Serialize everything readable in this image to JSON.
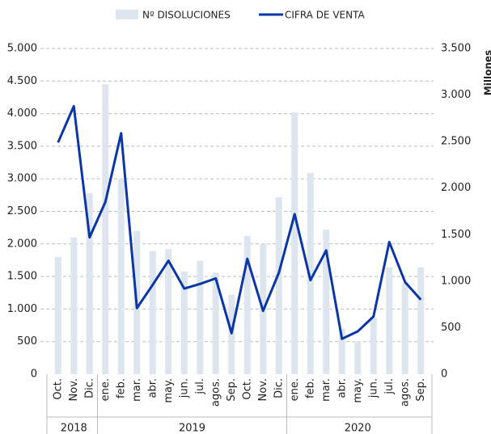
{
  "chart_data": {
    "type": "bar-line",
    "categories": [
      "Oct.",
      "Nov.",
      "Dic.",
      "ene.",
      "feb.",
      "mar.",
      "abr.",
      "may.",
      "jun.",
      "jul.",
      "agos.",
      "Sep.",
      "Oct.",
      "Nov.",
      "Dic.",
      "ene.",
      "feb.",
      "mar.",
      "abr.",
      "may.",
      "jun.",
      "jul.",
      "agos.",
      "Sep."
    ],
    "x_groups": [
      {
        "label": "2018",
        "span": 3
      },
      {
        "label": "2019",
        "span": 12
      },
      {
        "label": "2020",
        "span": 9
      }
    ],
    "series": [
      {
        "name": "Nº DISOLUCIONES",
        "type": "bar",
        "color": "#dde6ee",
        "axis": "y",
        "values": [
          1800,
          2100,
          2780,
          4450,
          3000,
          2200,
          1890,
          1920,
          1580,
          1740,
          1560,
          1220,
          2120,
          2000,
          2720,
          4020,
          3090,
          2220,
          700,
          500,
          870,
          1640,
          1400,
          1640
        ]
      },
      {
        "name": "CIFRA DE VENTA",
        "type": "line",
        "color": "#0a36a6",
        "axis": "y2",
        "values": [
          2490,
          2880,
          1470,
          1850,
          2590,
          710,
          960,
          1220,
          920,
          970,
          1030,
          440,
          1240,
          680,
          1090,
          1720,
          1010,
          1330,
          380,
          460,
          620,
          1420,
          990,
          800
        ]
      }
    ],
    "ylim": [
      0,
      5000
    ],
    "yticks": [
      0,
      {
        "value": 500,
        "label": "500"
      },
      {
        "value": 1000,
        "label": "1.000"
      },
      {
        "value": 1500,
        "label": "1.500"
      },
      {
        "value": 2000,
        "label": "2.000"
      },
      {
        "value": 2500,
        "label": "2.500"
      },
      {
        "value": 3000,
        "label": "3.000"
      },
      {
        "value": 3500,
        "label": "3.500"
      },
      {
        "value": 4000,
        "label": "4.000"
      },
      {
        "value": 4500,
        "label": "4.500"
      },
      {
        "value": 5000,
        "label": "5.000"
      }
    ],
    "y2lim": [
      0,
      3500
    ],
    "y2ticks": [
      0,
      500,
      {
        "value": 1000,
        "label": "1.000"
      },
      {
        "value": 1500,
        "label": "1.500"
      },
      {
        "value": 2000,
        "label": "2.000"
      },
      {
        "value": 2500,
        "label": "2.500"
      },
      {
        "value": 3000,
        "label": "3.000"
      },
      {
        "value": 3500,
        "label": "3.500"
      }
    ],
    "y2label": "Millones",
    "grid": true,
    "legend": "top"
  }
}
